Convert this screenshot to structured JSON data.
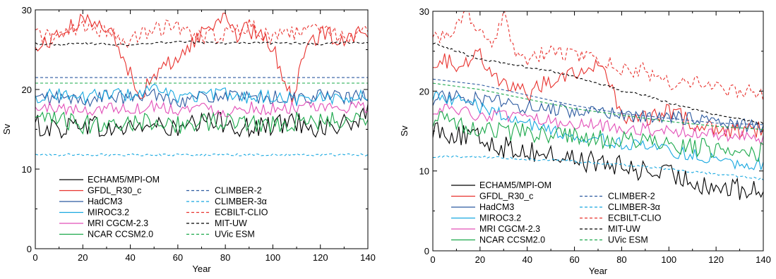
{
  "chart_data": [
    {
      "type": "line",
      "ylabel": "Sv",
      "xlabel": "Year",
      "xlim": [
        0,
        140
      ],
      "ylim": [
        0,
        30
      ],
      "xticks": [
        "0",
        "20",
        "40",
        "60",
        "80",
        "100",
        "120",
        "140"
      ],
      "yticks": [
        "0",
        "10",
        "20",
        "30"
      ],
      "grid": false,
      "legend_position": "bottom-left",
      "series": [
        {
          "name": "ECHAM5/MPI-OM",
          "color": "#000000",
          "dash": "solid",
          "x": [
            0,
            10,
            20,
            30,
            40,
            50,
            60,
            70,
            80,
            90,
            100,
            110,
            120,
            130,
            140
          ],
          "values": [
            15.5,
            15.0,
            16.0,
            14.8,
            15.3,
            15.5,
            14.8,
            15.8,
            16.0,
            15.0,
            15.5,
            16.0,
            15.2,
            15.5,
            16.8
          ]
        },
        {
          "name": "GFDL_R30_c",
          "color": "#e8322e",
          "dash": "solid",
          "x": [
            0,
            10,
            20,
            25,
            30,
            35,
            40,
            45,
            50,
            55,
            60,
            70,
            80,
            85,
            90,
            100,
            105,
            108,
            110,
            115,
            120,
            130,
            140
          ],
          "values": [
            25.0,
            27.0,
            28.5,
            29.0,
            28.0,
            25.0,
            22.0,
            19.5,
            21.5,
            23.0,
            24.0,
            27.0,
            29.5,
            27.0,
            27.5,
            25.5,
            21.0,
            19.0,
            21.0,
            25.5,
            27.0,
            26.5,
            27.5
          ]
        },
        {
          "name": "HadCM3",
          "color": "#2c5aa0",
          "dash": "solid",
          "x": [
            0,
            10,
            20,
            30,
            40,
            50,
            60,
            70,
            80,
            90,
            100,
            110,
            120,
            130,
            140
          ],
          "values": [
            18.8,
            19.0,
            18.5,
            19.2,
            18.8,
            19.5,
            18.6,
            19.0,
            19.2,
            18.8,
            19.0,
            18.8,
            19.3,
            18.9,
            19.2
          ]
        },
        {
          "name": "MIROC3.2",
          "color": "#18a8e0",
          "dash": "solid",
          "x": [
            0,
            10,
            20,
            30,
            40,
            50,
            60,
            70,
            80,
            90,
            100,
            110,
            120,
            130,
            140
          ],
          "values": [
            19.0,
            19.5,
            19.0,
            19.5,
            19.3,
            20.0,
            19.0,
            19.2,
            19.5,
            19.0,
            19.2,
            18.8,
            19.0,
            19.0,
            19.2
          ]
        },
        {
          "name": "MRI CGCM-2.3",
          "color": "#e24fb8",
          "dash": "solid",
          "x": [
            0,
            10,
            20,
            30,
            40,
            50,
            60,
            70,
            80,
            90,
            100,
            110,
            120,
            130,
            140
          ],
          "values": [
            17.5,
            17.8,
            17.2,
            17.8,
            17.5,
            18.0,
            17.5,
            17.8,
            17.2,
            17.8,
            17.5,
            17.8,
            17.5,
            17.8,
            17.6
          ]
        },
        {
          "name": "NCAR CCSM2.0",
          "color": "#1aa84a",
          "dash": "solid",
          "x": [
            0,
            10,
            20,
            30,
            40,
            50,
            60,
            70,
            80,
            90,
            100,
            110,
            120,
            130,
            140
          ],
          "values": [
            16.0,
            16.2,
            15.5,
            16.0,
            15.8,
            16.2,
            15.5,
            16.0,
            15.8,
            16.0,
            15.6,
            16.0,
            15.8,
            16.2,
            16.5
          ]
        },
        {
          "name": "CLIMBER-2",
          "color": "#2c5aa0",
          "dash": "dashed",
          "x": [
            0,
            140
          ],
          "values": [
            21.5,
            21.5
          ]
        },
        {
          "name": "CLIMBER-3α",
          "color": "#18a8e0",
          "dash": "dashed",
          "x": [
            0,
            140
          ],
          "values": [
            11.8,
            11.8
          ]
        },
        {
          "name": "ECBILT-CLIO",
          "color": "#e8322e",
          "dash": "dashed",
          "x": [
            0,
            10,
            20,
            30,
            40,
            50,
            60,
            70,
            80,
            90,
            100,
            110,
            120,
            130,
            140
          ],
          "values": [
            27.0,
            26.5,
            28.0,
            27.0,
            26.0,
            27.5,
            28.0,
            26.5,
            27.0,
            28.0,
            26.5,
            27.0,
            28.0,
            26.5,
            27.0
          ]
        },
        {
          "name": "MIT-UW",
          "color": "#000000",
          "dash": "dashed",
          "x": [
            0,
            10,
            20,
            30,
            40,
            50,
            60,
            70,
            80,
            90,
            100,
            110,
            120,
            130,
            140
          ],
          "values": [
            25.8,
            25.6,
            25.8,
            25.7,
            25.5,
            25.8,
            26.0,
            25.9,
            25.8,
            25.9,
            25.8,
            25.8,
            25.7,
            25.9,
            25.8
          ]
        },
        {
          "name": "UVic ESM",
          "color": "#1aa84a",
          "dash": "dashed",
          "x": [
            0,
            140
          ],
          "values": [
            20.8,
            20.8
          ]
        }
      ]
    },
    {
      "type": "line",
      "ylabel": "Sv",
      "xlabel": "Year",
      "xlim": [
        0,
        140
      ],
      "ylim": [
        0,
        30
      ],
      "xticks": [
        "0",
        "20",
        "40",
        "60",
        "80",
        "100",
        "120",
        "140"
      ],
      "yticks": [
        "0",
        "10",
        "20",
        "30"
      ],
      "grid": false,
      "legend_position": "bottom-left",
      "series": [
        {
          "name": "ECHAM5/MPI-OM",
          "color": "#000000",
          "dash": "solid",
          "x": [
            0,
            10,
            20,
            30,
            40,
            50,
            60,
            70,
            80,
            90,
            100,
            110,
            120,
            130,
            140
          ],
          "values": [
            15.5,
            14.5,
            14.0,
            13.0,
            12.5,
            12.0,
            11.5,
            11.0,
            10.5,
            10.0,
            9.5,
            8.8,
            8.0,
            7.6,
            7.5
          ]
        },
        {
          "name": "GFDL_R30_c",
          "color": "#e8322e",
          "dash": "solid",
          "x": [
            0,
            10,
            20,
            30,
            40,
            50,
            60,
            70,
            75,
            80,
            90,
            100,
            110,
            120,
            130,
            140
          ],
          "values": [
            24.0,
            23.5,
            24.5,
            21.0,
            19.5,
            21.5,
            22.5,
            23.0,
            21.0,
            17.0,
            16.5,
            17.5,
            16.0,
            15.5,
            15.0,
            15.2
          ]
        },
        {
          "name": "HadCM3",
          "color": "#2c5aa0",
          "dash": "solid",
          "x": [
            0,
            10,
            20,
            30,
            40,
            50,
            60,
            70,
            80,
            90,
            100,
            110,
            120,
            130,
            140
          ],
          "values": [
            19.0,
            19.5,
            19.0,
            18.5,
            18.0,
            17.8,
            17.5,
            17.2,
            17.0,
            16.8,
            16.5,
            16.8,
            16.0,
            15.8,
            15.5
          ]
        },
        {
          "name": "MIROC3.2",
          "color": "#18a8e0",
          "dash": "solid",
          "x": [
            0,
            10,
            20,
            30,
            40,
            50,
            60,
            70,
            80,
            90,
            100,
            110,
            120,
            130,
            140
          ],
          "values": [
            19.5,
            19.0,
            18.0,
            17.0,
            16.0,
            15.0,
            14.5,
            14.0,
            13.5,
            13.0,
            12.5,
            12.0,
            11.5,
            11.0,
            10.8
          ]
        },
        {
          "name": "MRI CGCM-2.3",
          "color": "#e24fb8",
          "dash": "solid",
          "x": [
            0,
            10,
            20,
            30,
            40,
            50,
            60,
            70,
            80,
            90,
            100,
            110,
            120,
            130,
            140
          ],
          "values": [
            17.8,
            17.5,
            17.0,
            16.8,
            16.5,
            16.2,
            16.0,
            15.8,
            15.5,
            15.2,
            15.0,
            14.8,
            14.5,
            14.2,
            14.0
          ]
        },
        {
          "name": "NCAR CCSM2.0",
          "color": "#1aa84a",
          "dash": "solid",
          "x": [
            0,
            10,
            20,
            30,
            40,
            50,
            60,
            70,
            80,
            90,
            100,
            110,
            120,
            130,
            140
          ],
          "values": [
            16.5,
            16.0,
            15.5,
            15.0,
            14.8,
            14.5,
            14.2,
            14.0,
            13.8,
            13.5,
            13.2,
            13.0,
            12.8,
            12.5,
            12.4
          ]
        },
        {
          "name": "CLIMBER-2",
          "color": "#2c5aa0",
          "dash": "dashed",
          "x": [
            0,
            20,
            40,
            60,
            80,
            100,
            120,
            140
          ],
          "values": [
            21.5,
            20.8,
            19.5,
            18.2,
            17.2,
            16.6,
            16.0,
            15.8
          ]
        },
        {
          "name": "CLIMBER-3α",
          "color": "#18a8e0",
          "dash": "dashed",
          "x": [
            0,
            20,
            40,
            60,
            80,
            100,
            120,
            140
          ],
          "values": [
            11.8,
            11.8,
            11.5,
            11.2,
            10.8,
            10.2,
            9.6,
            9.0
          ]
        },
        {
          "name": "ECBILT-CLIO",
          "color": "#e8322e",
          "dash": "dashed",
          "x": [
            0,
            5,
            10,
            15,
            20,
            25,
            30,
            35,
            40,
            50,
            60,
            70,
            80,
            90,
            100,
            110,
            120,
            130,
            140
          ],
          "values": [
            27.5,
            26.5,
            28.5,
            30.0,
            27.0,
            25.5,
            29.5,
            24.5,
            24.0,
            25.0,
            24.5,
            24.0,
            23.0,
            22.5,
            21.0,
            21.5,
            20.5,
            20.0,
            19.5
          ]
        },
        {
          "name": "MIT-UW",
          "color": "#000000",
          "dash": "dashed",
          "x": [
            0,
            10,
            20,
            30,
            40,
            50,
            60,
            70,
            80,
            90,
            100,
            110,
            120,
            130,
            140
          ],
          "values": [
            26.0,
            25.0,
            24.0,
            23.5,
            23.0,
            22.5,
            21.8,
            21.0,
            20.0,
            19.5,
            18.5,
            17.8,
            17.0,
            16.5,
            16.0
          ]
        },
        {
          "name": "UVic ESM",
          "color": "#1aa84a",
          "dash": "dashed",
          "x": [
            0,
            20,
            40,
            60,
            80,
            100,
            120,
            140
          ],
          "values": [
            21.0,
            20.2,
            19.0,
            17.8,
            17.0,
            16.2,
            15.6,
            15.2
          ]
        }
      ]
    }
  ]
}
